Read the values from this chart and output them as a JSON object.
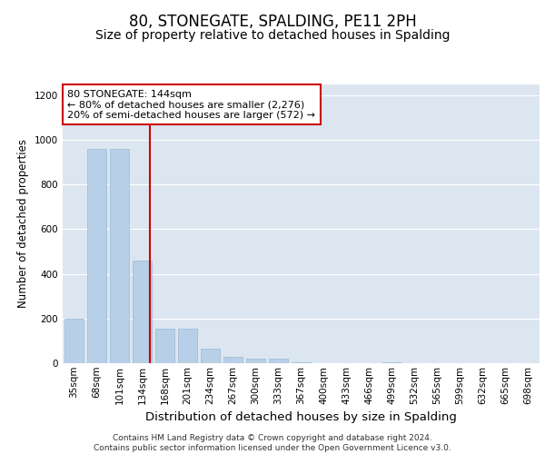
{
  "title": "80, STONEGATE, SPALDING, PE11 2PH",
  "subtitle": "Size of property relative to detached houses in Spalding",
  "xlabel": "Distribution of detached houses by size in Spalding",
  "ylabel": "Number of detached properties",
  "categories": [
    "35sqm",
    "68sqm",
    "101sqm",
    "134sqm",
    "168sqm",
    "201sqm",
    "234sqm",
    "267sqm",
    "300sqm",
    "333sqm",
    "367sqm",
    "400sqm",
    "433sqm",
    "466sqm",
    "499sqm",
    "532sqm",
    "565sqm",
    "599sqm",
    "632sqm",
    "665sqm",
    "698sqm"
  ],
  "values": [
    200,
    960,
    960,
    460,
    155,
    155,
    65,
    30,
    20,
    20,
    5,
    0,
    0,
    0,
    5,
    0,
    0,
    0,
    0,
    0,
    0
  ],
  "bar_color": "#b8cfe8",
  "bar_edge_color": "#9ab8d8",
  "annotation_text": "80 STONEGATE: 144sqm\n← 80% of detached houses are smaller (2,276)\n20% of semi-detached houses are larger (572) →",
  "annotation_box_color": "#ffffff",
  "annotation_box_edge": "#cc0000",
  "vline_color": "#cc0000",
  "ylim": [
    0,
    1250
  ],
  "yticks": [
    0,
    200,
    400,
    600,
    800,
    1000,
    1200
  ],
  "background_color": "#dce6f0",
  "footer": "Contains HM Land Registry data © Crown copyright and database right 2024.\nContains public sector information licensed under the Open Government Licence v3.0.",
  "title_fontsize": 12,
  "subtitle_fontsize": 10,
  "xlabel_fontsize": 9.5,
  "ylabel_fontsize": 8.5,
  "tick_fontsize": 7.5,
  "footer_fontsize": 6.5
}
